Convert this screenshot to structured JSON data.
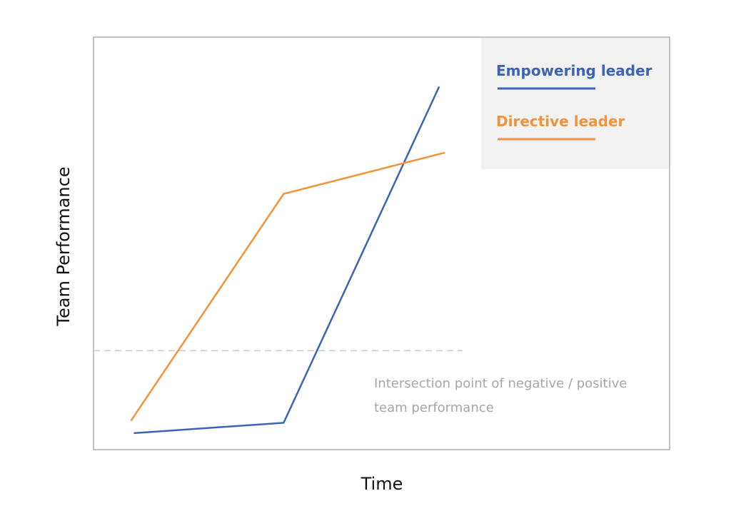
{
  "chart_data": {
    "type": "line",
    "title": "",
    "xlabel": "Time",
    "ylabel": "Team Performance",
    "xlim": [
      0,
      10
    ],
    "ylim": [
      0,
      10
    ],
    "grid": false,
    "legend_position": "top-right",
    "series": [
      {
        "name": "Empowering leader",
        "color": "#3d64b4",
        "points": [
          [
            0.7,
            0.4
          ],
          [
            3.3,
            0.65
          ],
          [
            6.0,
            8.8
          ]
        ]
      },
      {
        "name": "Directive leader",
        "color": "#f0933a",
        "points": [
          [
            0.65,
            0.7
          ],
          [
            3.3,
            6.2
          ],
          [
            6.1,
            7.2
          ]
        ]
      }
    ],
    "reference_line": {
      "y": 2.4,
      "color": "#cccccc",
      "style": "dashed"
    },
    "annotation": {
      "lines": [
        "Intersection point of negative / positive",
        "team performance"
      ],
      "color": "#a6a6a6"
    },
    "legend_background": "#f2f2f2",
    "frame_color": "#9a9a9a"
  }
}
